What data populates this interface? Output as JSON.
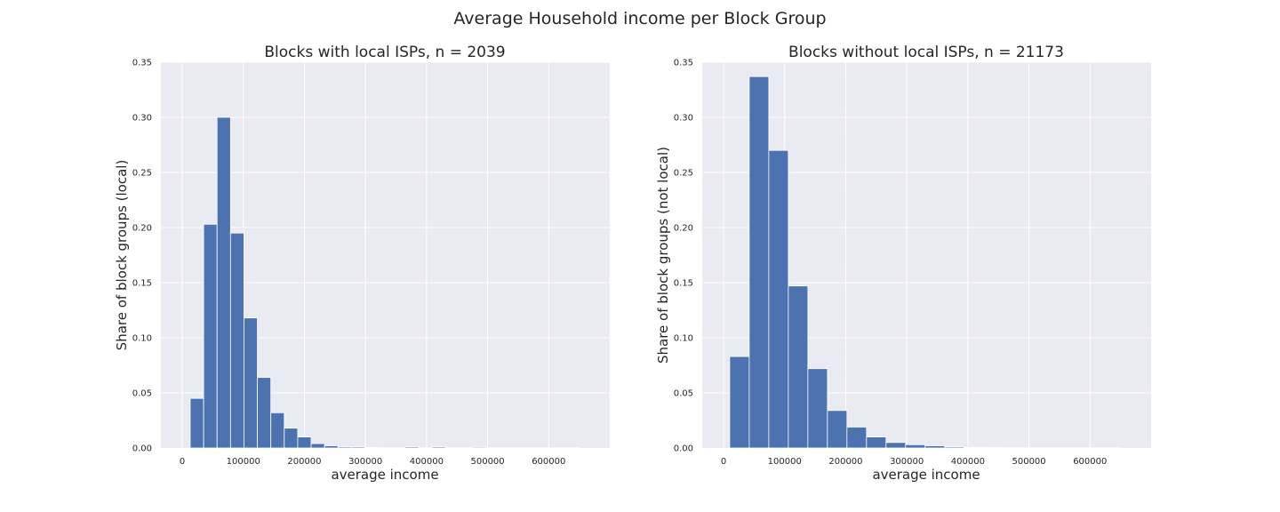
{
  "figure_title": "Average Household income per Block Group",
  "colors": {
    "plot_background": "#eaeaf2",
    "bar": "#4c72b0",
    "grid": "#ffffff"
  },
  "chart_data": [
    {
      "type": "bar",
      "title": "Blocks with local ISPs, n = 2039",
      "xlabel": "average income",
      "ylabel": "Share of block groups (local)",
      "xlim": [
        -35000,
        700000
      ],
      "ylim": [
        0,
        0.35
      ],
      "grid": true,
      "xticks": [
        0,
        100000,
        200000,
        300000,
        400000,
        500000,
        600000
      ],
      "yticks": [
        0.0,
        0.05,
        0.1,
        0.15,
        0.2,
        0.25,
        0.3,
        0.35
      ],
      "xtick_labels": [
        "0",
        "100000",
        "200000",
        "300000",
        "400000",
        "500000",
        "600000"
      ],
      "ytick_labels": [
        "0.00",
        "0.05",
        "0.10",
        "0.15",
        "0.20",
        "0.25",
        "0.30",
        "0.35"
      ],
      "bin_edges": [
        13000,
        35000,
        57000,
        79000,
        101000,
        123000,
        145000,
        167000,
        189000,
        211000,
        233000,
        255000,
        277000,
        299000,
        321000,
        343000,
        365000,
        387000,
        409000,
        431000,
        453000,
        475000,
        497000,
        519000,
        541000,
        563000,
        585000,
        607000,
        629000,
        651000
      ],
      "values": [
        0.045,
        0.203,
        0.3,
        0.195,
        0.118,
        0.064,
        0.032,
        0.018,
        0.01,
        0.004,
        0.002,
        0.001,
        0.001,
        0.0005,
        0.0002,
        0.0002,
        0.001,
        0.0002,
        0.001,
        0.0002,
        0.0002,
        0.0008,
        0.0002,
        0.0002,
        0.0002,
        0.0002,
        0.0002,
        0.0002,
        0.0002
      ]
    },
    {
      "type": "bar",
      "title": "Blocks without local ISPs, n = 21173",
      "xlabel": "average income",
      "ylabel": "Share of block groups (not local)",
      "xlim": [
        -35000,
        700000
      ],
      "ylim": [
        0,
        0.35
      ],
      "grid": true,
      "xticks": [
        0,
        100000,
        200000,
        300000,
        400000,
        500000,
        600000
      ],
      "yticks": [
        0.0,
        0.05,
        0.1,
        0.15,
        0.2,
        0.25,
        0.3,
        0.35
      ],
      "xtick_labels": [
        "0",
        "100000",
        "200000",
        "300000",
        "400000",
        "500000",
        "600000"
      ],
      "ytick_labels": [
        "0.00",
        "0.05",
        "0.10",
        "0.15",
        "0.20",
        "0.25",
        "0.30",
        "0.35"
      ],
      "bin_edges": [
        10000,
        42000,
        74000,
        106000,
        138000,
        170000,
        202000,
        234000,
        266000,
        298000,
        330000,
        362000,
        394000,
        426000,
        458000,
        490000,
        522000,
        554000,
        586000,
        618000,
        650000
      ],
      "values": [
        0.083,
        0.337,
        0.27,
        0.147,
        0.072,
        0.034,
        0.019,
        0.01,
        0.005,
        0.003,
        0.002,
        0.001,
        0.0006,
        0.0004,
        0.0003,
        0.0002,
        0.0002,
        0.0002,
        0.0002,
        0.0002
      ]
    }
  ]
}
